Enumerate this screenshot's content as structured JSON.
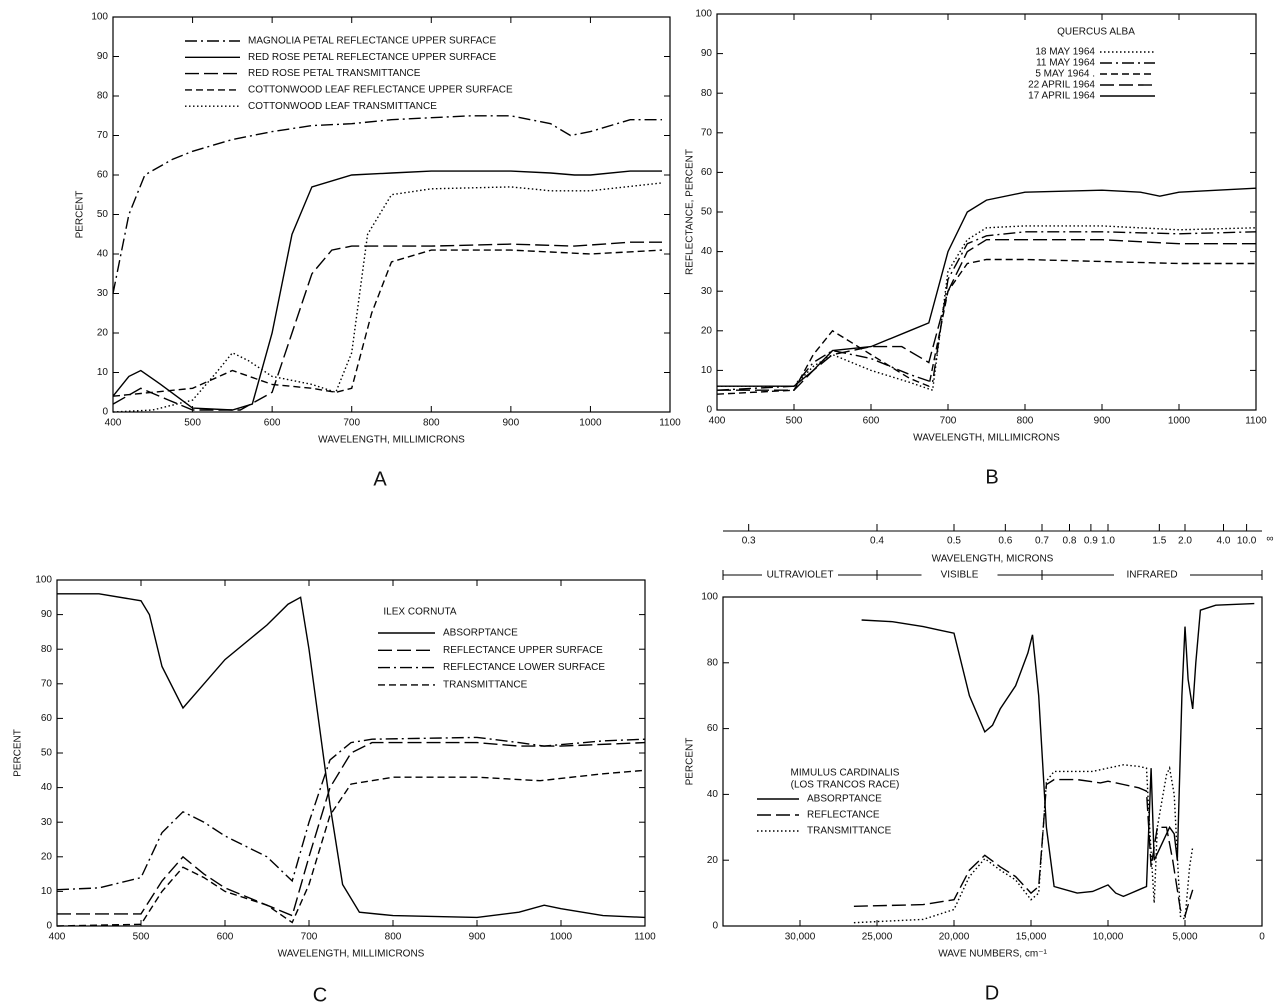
{
  "chart_data": [
    {
      "type": "line",
      "panel": "A",
      "xlabel": "WAVELENGTH, MILLIMICRONS",
      "ylabel": "PERCENT",
      "xlim": [
        400,
        1100
      ],
      "xticks": [
        400,
        500,
        600,
        700,
        800,
        900,
        1000,
        1100
      ],
      "ylim": [
        0,
        100
      ],
      "yticks": [
        0,
        10,
        20,
        30,
        40,
        50,
        60,
        70,
        80,
        90,
        100
      ],
      "series": [
        {
          "name": "MAGNOLIA PETAL REFLECTANCE UPPER SURFACE",
          "color": "#000",
          "linestyle": "dashdot",
          "x": [
            400,
            420,
            440,
            475,
            500,
            550,
            600,
            650,
            700,
            750,
            800,
            850,
            900,
            950,
            975,
            1000,
            1050,
            1090
          ],
          "values": [
            30,
            50,
            60,
            64,
            66,
            69,
            71,
            72.5,
            73,
            74,
            74.5,
            75,
            75,
            73,
            70,
            71,
            74,
            74
          ]
        },
        {
          "name": "RED ROSE PETAL REFLECTANCE UPPER SURFACE",
          "color": "#000",
          "linestyle": "solid",
          "x": [
            400,
            420,
            435,
            460,
            500,
            550,
            575,
            600,
            625,
            650,
            700,
            750,
            800,
            900,
            950,
            980,
            1000,
            1050,
            1090
          ],
          "values": [
            4,
            9,
            10.5,
            7,
            1,
            0.5,
            2,
            20,
            45,
            57,
            60,
            60.5,
            61,
            61,
            60.5,
            60,
            60,
            61,
            61
          ]
        },
        {
          "name": "RED ROSE PETAL TRANSMITTANCE",
          "color": "#000",
          "linestyle": "longdash",
          "x": [
            400,
            435,
            470,
            500,
            560,
            600,
            625,
            650,
            675,
            700,
            800,
            900,
            980,
            1050,
            1090
          ],
          "values": [
            2,
            6,
            3,
            0.5,
            0.5,
            5,
            20,
            35,
            41,
            42,
            42,
            42.5,
            42,
            43,
            43
          ]
        },
        {
          "name": "COTTONWOOD LEAF REFLECTANCE UPPER SURFACE",
          "color": "#000",
          "linestyle": "dashed",
          "x": [
            400,
            450,
            500,
            550,
            600,
            650,
            680,
            700,
            725,
            750,
            800,
            900,
            950,
            1000,
            1090
          ],
          "values": [
            4,
            5,
            6,
            10.5,
            7,
            6,
            5,
            6,
            25,
            38,
            41,
            41,
            40.5,
            40,
            41
          ]
        },
        {
          "name": "COTTONWOOD LEAF TRANSMITTANCE",
          "color": "#000",
          "linestyle": "dotted",
          "x": [
            400,
            450,
            500,
            530,
            550,
            570,
            600,
            650,
            680,
            700,
            720,
            750,
            800,
            900,
            950,
            1000,
            1090
          ],
          "values": [
            0,
            0.5,
            3,
            10,
            15,
            13,
            9,
            7,
            5,
            15,
            45,
            55,
            56.5,
            57,
            56,
            56,
            58
          ]
        }
      ]
    },
    {
      "type": "line",
      "panel": "B",
      "title": "QUERCUS ALBA",
      "xlabel": "WAVELENGTH, MILLIMICRONS",
      "ylabel": "REFLECTANCE, PERCENT",
      "xlim": [
        400,
        1100
      ],
      "xticks": [
        400,
        500,
        600,
        700,
        800,
        900,
        1000,
        1100
      ],
      "ylim": [
        0,
        100
      ],
      "yticks": [
        0,
        10,
        20,
        30,
        40,
        50,
        60,
        70,
        80,
        90,
        100
      ],
      "series": [
        {
          "name": "18 MAY 1964",
          "color": "#000",
          "linestyle": "dotted",
          "x": [
            400,
            500,
            525,
            550,
            600,
            650,
            680,
            700,
            725,
            750,
            800,
            900,
            1000,
            1100
          ],
          "values": [
            6,
            6,
            11,
            14,
            10,
            7,
            5,
            35,
            43,
            46,
            46.5,
            46.5,
            45.5,
            46
          ]
        },
        {
          "name": "11 MAY 1964",
          "color": "#000",
          "linestyle": "dashdot",
          "x": [
            400,
            500,
            525,
            550,
            600,
            650,
            680,
            700,
            725,
            750,
            800,
            900,
            1000,
            1100
          ],
          "values": [
            5,
            6,
            12,
            15,
            13,
            9,
            7,
            33,
            42,
            44,
            45,
            45,
            44.5,
            45
          ]
        },
        {
          "name": "5 MAY 1964 .",
          "color": "#000",
          "linestyle": "dashed",
          "x": [
            400,
            500,
            525,
            550,
            575,
            600,
            650,
            675,
            700,
            725,
            750,
            800,
            900,
            1000,
            1100
          ],
          "values": [
            4,
            5,
            14,
            20,
            17,
            14,
            8,
            6,
            30,
            37,
            38,
            38,
            37.5,
            37,
            37
          ]
        },
        {
          "name": "22 APRIL 1964",
          "color": "#000",
          "linestyle": "longdash",
          "x": [
            400,
            500,
            525,
            550,
            600,
            640,
            675,
            700,
            725,
            750,
            800,
            900,
            1000,
            1100
          ],
          "values": [
            5,
            5,
            10,
            14,
            16,
            16,
            12,
            30,
            40,
            43,
            43,
            43,
            42,
            42
          ]
        },
        {
          "name": "17 APRIL 1964",
          "color": "#000",
          "linestyle": "solid",
          "x": [
            400,
            450,
            500,
            525,
            550,
            600,
            650,
            675,
            700,
            725,
            750,
            800,
            900,
            950,
            975,
            1000,
            1100
          ],
          "values": [
            6,
            6,
            6,
            10,
            15,
            16,
            20,
            22,
            40,
            50,
            53,
            55,
            55.5,
            55,
            54,
            55,
            56
          ]
        }
      ]
    },
    {
      "type": "line",
      "panel": "C",
      "title": "ILEX CORNUTA",
      "xlabel": "WAVELENGTH, MILLIMICRONS",
      "ylabel": "PERCENT",
      "xlim": [
        400,
        1100
      ],
      "xticks": [
        400,
        500,
        600,
        700,
        800,
        900,
        1000,
        1100
      ],
      "ylim": [
        0,
        100
      ],
      "yticks": [
        0,
        10,
        20,
        30,
        40,
        50,
        60,
        70,
        80,
        90,
        100
      ],
      "series": [
        {
          "name": "ABSORPTANCE",
          "color": "#000",
          "linestyle": "solid",
          "x": [
            400,
            450,
            500,
            510,
            525,
            550,
            575,
            600,
            650,
            675,
            690,
            700,
            725,
            740,
            760,
            800,
            900,
            950,
            980,
            1000,
            1050,
            1100
          ],
          "values": [
            96,
            96,
            94,
            90,
            75,
            63,
            70,
            77,
            87,
            93,
            95,
            80,
            35,
            12,
            4,
            3,
            2.5,
            4,
            6,
            5,
            3,
            2.5
          ]
        },
        {
          "name": "REFLECTANCE UPPER SURFACE",
          "color": "#000",
          "linestyle": "longdash",
          "x": [
            400,
            500,
            525,
            550,
            575,
            600,
            650,
            680,
            700,
            725,
            750,
            775,
            800,
            900,
            950,
            1000,
            1100
          ],
          "values": [
            3.5,
            3.5,
            13,
            20,
            15,
            11,
            6,
            3,
            20,
            40,
            50,
            53,
            53,
            53,
            52,
            52,
            53
          ]
        },
        {
          "name": "REFLECTANCE LOWER SURFACE",
          "color": "#000",
          "linestyle": "dashdot",
          "x": [
            400,
            450,
            500,
            525,
            550,
            575,
            600,
            650,
            680,
            700,
            725,
            750,
            775,
            900,
            950,
            980,
            1050,
            1100
          ],
          "values": [
            10.5,
            11,
            14,
            27,
            33,
            30,
            26,
            20,
            13,
            30,
            48,
            53,
            54,
            54.5,
            53,
            52,
            53.5,
            54
          ]
        },
        {
          "name": "TRANSMITTANCE",
          "color": "#000",
          "linestyle": "dashed",
          "x": [
            400,
            500,
            525,
            550,
            575,
            600,
            650,
            680,
            700,
            725,
            750,
            800,
            900,
            975,
            1050,
            1100
          ],
          "values": [
            0,
            0.5,
            10,
            17,
            14,
            10,
            6,
            1,
            12,
            32,
            41,
            43,
            43,
            42,
            44,
            45
          ]
        }
      ]
    },
    {
      "type": "line",
      "panel": "D",
      "title": "MIMULUS CARDINALIS",
      "subtitle": "(LOS TRANCOS RACE)",
      "xlabel": "WAVE NUMBERS, cm⁻¹",
      "ylabel": "PERCENT",
      "x2label": "WAVELENGTH, MICRONS",
      "xlim": [
        35000,
        0
      ],
      "xticks": [
        {
          "value": 30000,
          "label": "30,000"
        },
        {
          "value": 25000,
          "label": "25,000"
        },
        {
          "value": 20000,
          "label": "20,000"
        },
        {
          "value": 15000,
          "label": "15,000"
        },
        {
          "value": 10000,
          "label": "10,000"
        },
        {
          "value": 5000,
          "label": "5,000"
        },
        0
      ],
      "x2ticks": [
        0.3,
        0.4,
        0.5,
        0.6,
        0.7,
        0.8,
        0.9,
        {
          "value": 1,
          "label": "1.0"
        },
        1.5,
        {
          "value": 2,
          "label": "2.0"
        },
        {
          "value": 4,
          "label": "4.0"
        },
        {
          "value": 10,
          "label": "10.0"
        }
      ],
      "x2_end_label": "∞",
      "regions": [
        "ULTRAVIOLET",
        "VISIBLE",
        "INFRARED"
      ],
      "region_bounds": [
        0.4,
        0.7
      ],
      "ylim": [
        0,
        100
      ],
      "yticks": [
        0,
        20,
        40,
        60,
        80,
        100
      ],
      "series": [
        {
          "name": "ABSORPTANCE",
          "color": "#000",
          "linestyle": "solid",
          "x": [
            26000,
            24000,
            22000,
            21000,
            20000,
            19000,
            18000,
            17500,
            17000,
            16000,
            15200,
            14900,
            14500,
            14000,
            13500,
            12000,
            11000,
            10000,
            9500,
            9000,
            8500,
            8000,
            7500,
            7200,
            7000,
            6500,
            6000,
            5700,
            5500,
            5200,
            5000,
            4800,
            4500,
            4300,
            4000,
            3000,
            500
          ],
          "values": [
            93,
            92.5,
            91,
            90,
            89,
            70,
            59,
            61,
            66,
            73,
            83,
            88.5,
            70,
            30,
            12,
            10,
            10.5,
            12.5,
            10,
            9,
            10,
            11,
            12,
            48,
            20,
            25,
            30,
            28,
            20,
            70,
            91,
            75,
            66,
            80,
            96,
            97.5,
            98
          ]
        },
        {
          "name": "REFLECTANCE",
          "color": "#000",
          "linestyle": "longdash",
          "x": [
            26500,
            22000,
            20000,
            19000,
            18000,
            17000,
            16000,
            15000,
            14500,
            14200,
            14000,
            13500,
            12000,
            10500,
            10000,
            9000,
            8000,
            7500,
            7200,
            6800,
            6200,
            5800,
            5300,
            5000,
            4700,
            4500
          ],
          "values": [
            6,
            6.5,
            8,
            17,
            21.5,
            18,
            15,
            10,
            12,
            30,
            43,
            44.5,
            44.5,
            43.5,
            44,
            43,
            42,
            41,
            18,
            30,
            30,
            20,
            5,
            3,
            8,
            11
          ]
        },
        {
          "name": "TRANSMITTANCE",
          "color": "#000",
          "linestyle": "dotted",
          "x": [
            26500,
            22000,
            20000,
            19000,
            18000,
            17000,
            16000,
            15000,
            14500,
            14200,
            14000,
            13500,
            11000,
            10000,
            9000,
            8000,
            7500,
            7300,
            7000,
            6800,
            6200,
            6000,
            5700,
            5300,
            5000,
            4700,
            4500
          ],
          "values": [
            1,
            2,
            5,
            15,
            20.5,
            17,
            14,
            8,
            10,
            30,
            44,
            47,
            47,
            48,
            49,
            48.5,
            48,
            30,
            7,
            30,
            46,
            48,
            40,
            3,
            2,
            18,
            24
          ]
        }
      ]
    }
  ]
}
